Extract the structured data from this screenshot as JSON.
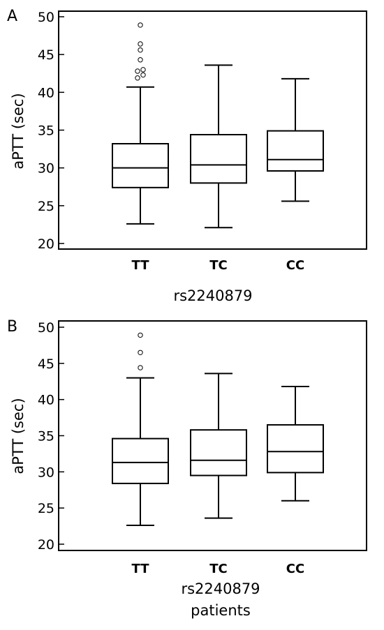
{
  "chart_data": [
    {
      "type": "box",
      "panel_label": "A",
      "ylabel": "aPTT (sec)",
      "xlabel": "rs2240879",
      "ylim": [
        19,
        51
      ],
      "yticks": [
        20,
        25,
        30,
        35,
        40,
        45,
        50
      ],
      "categories": [
        "TT",
        "TC",
        "CC"
      ],
      "boxes": [
        {
          "category": "TT",
          "whisker_low": 22.6,
          "q1": 27.4,
          "median": 30.0,
          "q3": 33.2,
          "whisker_high": 40.7,
          "outliers": [
            41.9,
            42.3,
            42.8,
            43.0,
            44.3,
            45.6,
            46.4,
            48.9
          ]
        },
        {
          "category": "TC",
          "whisker_low": 22.1,
          "q1": 28.0,
          "median": 30.4,
          "q3": 34.4,
          "whisker_high": 43.6,
          "outliers": []
        },
        {
          "category": "CC",
          "whisker_low": 25.6,
          "q1": 29.6,
          "median": 31.1,
          "q3": 34.9,
          "whisker_high": 41.8,
          "outliers": []
        }
      ]
    },
    {
      "type": "box",
      "panel_label": "B",
      "ylabel": "aPTT (sec)",
      "xlabel": "rs2240879",
      "xlabel2": "patients",
      "ylim": [
        19,
        51
      ],
      "yticks": [
        20,
        25,
        30,
        35,
        40,
        45,
        50
      ],
      "categories": [
        "TT",
        "TC",
        "CC"
      ],
      "boxes": [
        {
          "category": "TT",
          "whisker_low": 22.6,
          "q1": 28.4,
          "median": 31.3,
          "q3": 34.6,
          "whisker_high": 43.0,
          "outliers": [
            44.4,
            46.5,
            48.9
          ]
        },
        {
          "category": "TC",
          "whisker_low": 23.6,
          "q1": 29.5,
          "median": 31.6,
          "q3": 35.8,
          "whisker_high": 43.6,
          "outliers": []
        },
        {
          "category": "CC",
          "whisker_low": 26.0,
          "q1": 29.9,
          "median": 32.8,
          "q3": 36.5,
          "whisker_high": 41.8,
          "outliers": []
        }
      ]
    }
  ]
}
